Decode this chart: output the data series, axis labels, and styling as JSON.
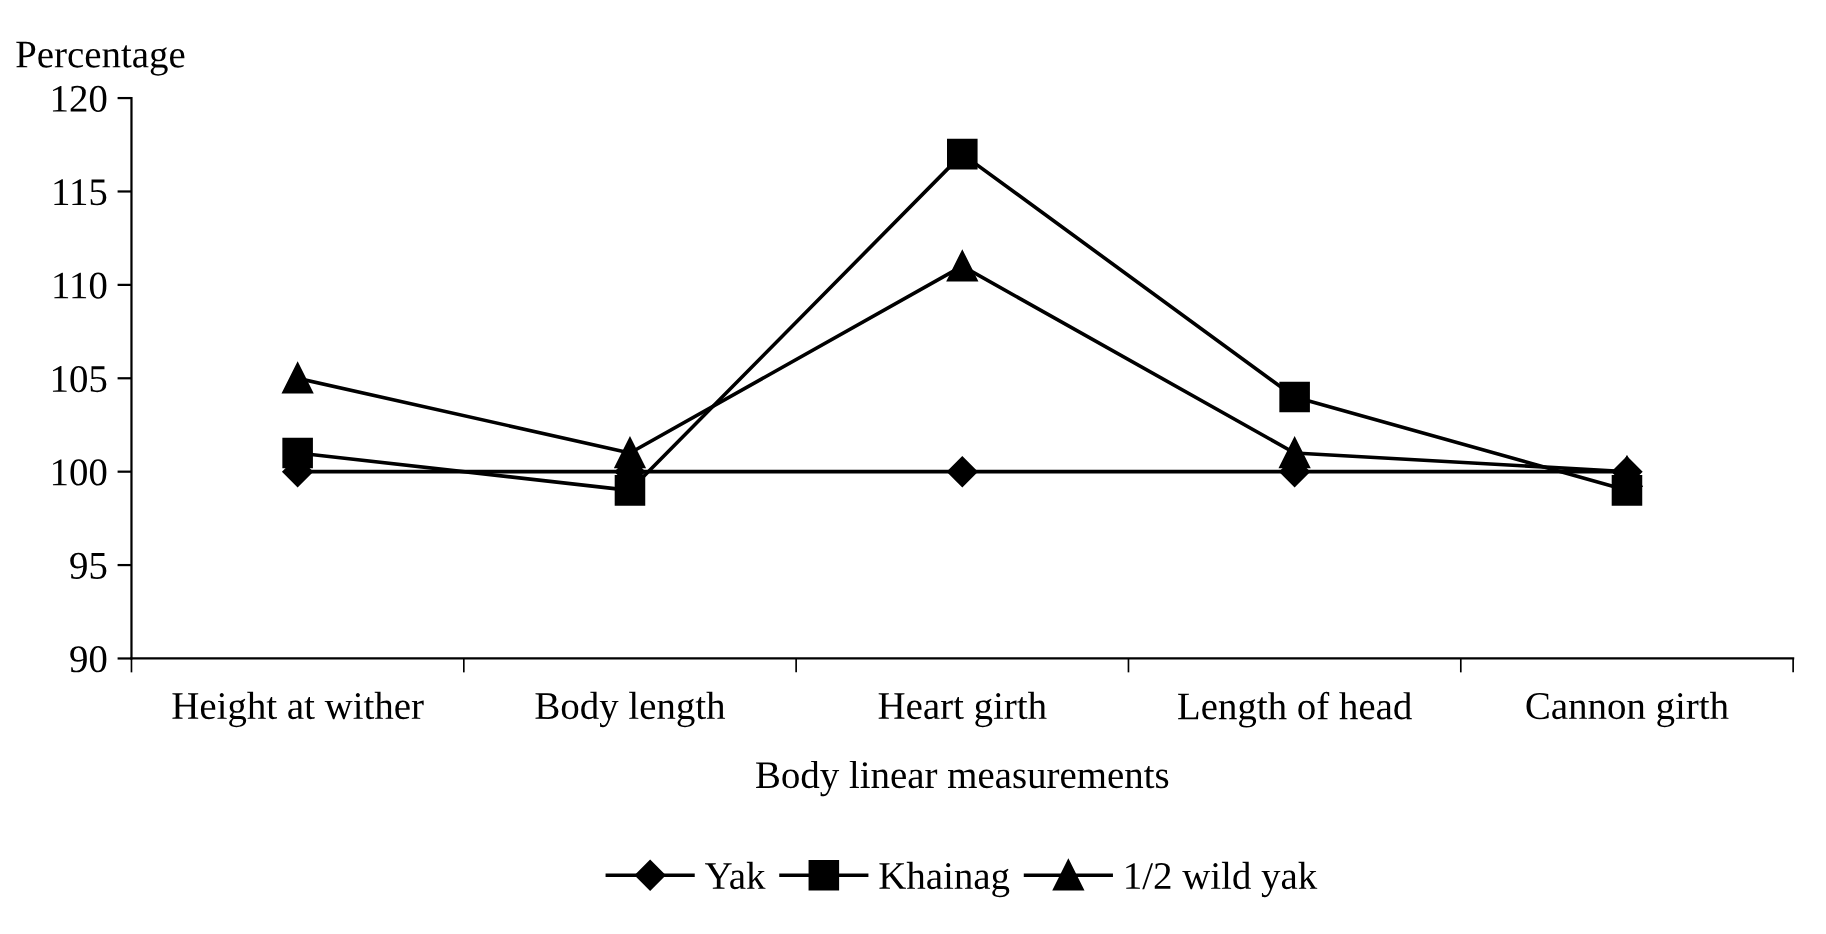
{
  "chart_data": {
    "type": "line",
    "ylabel": "Percentage",
    "xlabel": "Body linear measurements",
    "categories": [
      "Height at wither",
      "Body length",
      "Heart girth",
      "Length of head",
      "Cannon girth"
    ],
    "series": [
      {
        "name": "Yak",
        "color": "#000000",
        "values": [
          100,
          100,
          100,
          100,
          100
        ],
        "marker": "diamond"
      },
      {
        "name": "Khainag",
        "color": "#000000",
        "values": [
          101,
          99,
          117,
          104,
          99
        ],
        "marker": "square"
      },
      {
        "name": "1/2 wild yak",
        "color": "#000000",
        "values": [
          105,
          101,
          111,
          101,
          100
        ],
        "marker": "triangle"
      }
    ],
    "ylim": [
      90,
      120
    ],
    "yticks": [
      90,
      95,
      100,
      105,
      110,
      115,
      120
    ],
    "grid": false,
    "legend": "bottom",
    "line_style": "solid"
  }
}
